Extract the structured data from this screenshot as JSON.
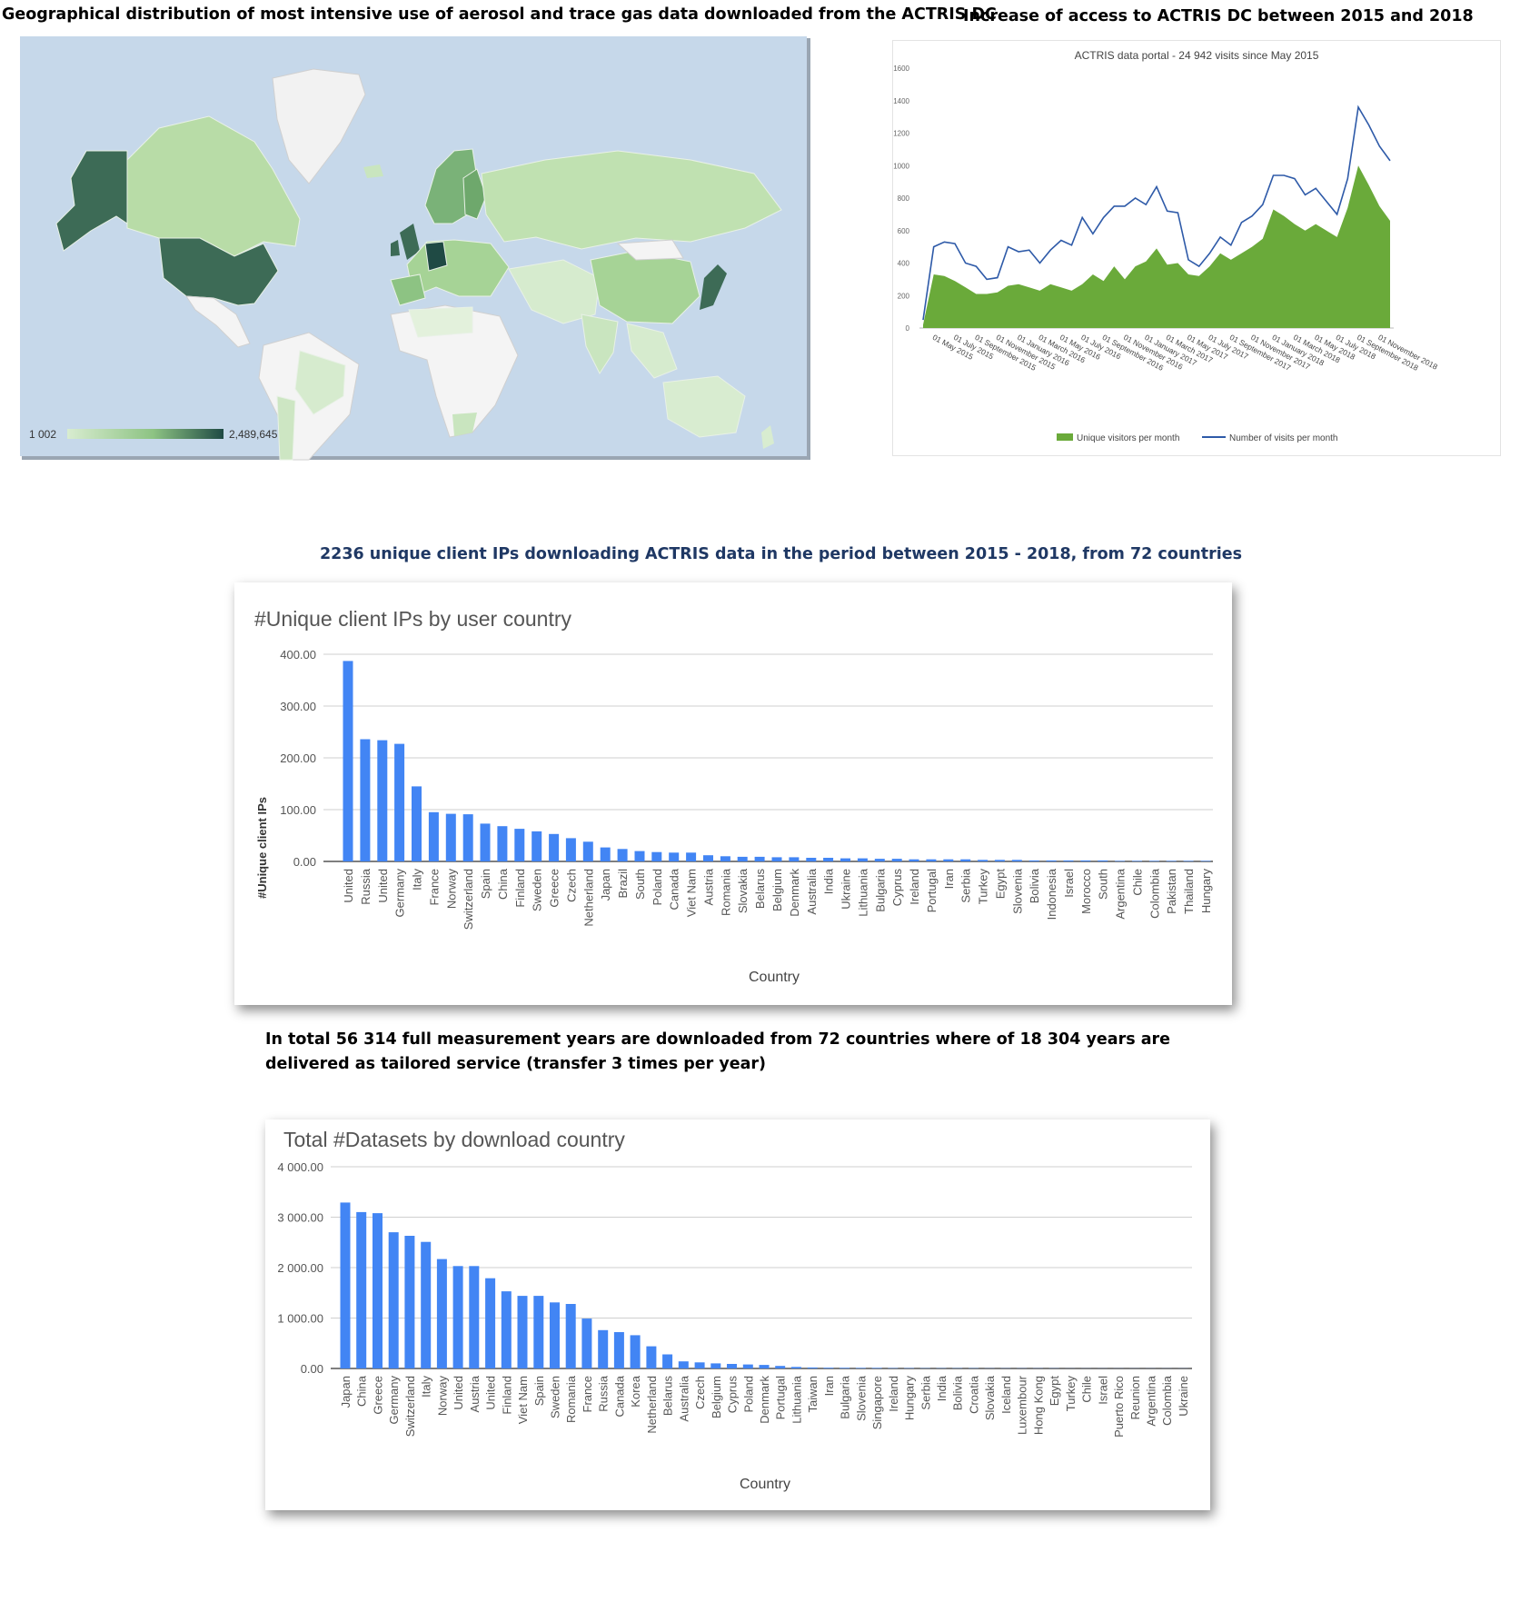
{
  "headings": {
    "map": "Geographical distribution of most intensive use of aerosol and trace gas data downloaded from the ACTRIS DC",
    "visits": "Increase of access to ACTRIS DC between 2015 and 2018",
    "ips": "2236 unique client IPs downloading ACTRIS data in the period between 2015 - 2018, from 72 countries",
    "datasets": "In total 56 314 full measurement years are downloaded from 72 countries where of 18 304 years are delivered as tailored service (transfer 3 times per year)"
  },
  "map": {
    "legend_min": "1 002",
    "legend_max": "2,489,645",
    "ocean_color": "#c6d8ea",
    "scale_low": "#d8ecd0",
    "scale_high": "#1f4a44"
  },
  "chart_data": [
    {
      "type": "area",
      "title": "ACTRIS data portal - 24 942 visits since May 2015",
      "ylim": [
        0,
        1600
      ],
      "yticks": [
        "0",
        "200",
        "400",
        "600",
        "800",
        "1000",
        "1200",
        "1400",
        "1600"
      ],
      "xtick_labels": [
        "01 May 2015",
        "01 July 2015",
        "01 September 2015",
        "01 November 2015",
        "01 January 2016",
        "01 March 2016",
        "01 May 2016",
        "01 July 2016",
        "01 September 2016",
        "01 November 2016",
        "01 January 2017",
        "01 March 2017",
        "01 May 2017",
        "01 July 2017",
        "01 September 2017",
        "01 November 2017",
        "01 January 2018",
        "01 March 2018",
        "01 May 2018",
        "01 July 2018",
        "01 September 2018",
        "01 November 2018"
      ],
      "x": [
        "2015-04",
        "2015-05",
        "2015-06",
        "2015-07",
        "2015-08",
        "2015-09",
        "2015-10",
        "2015-11",
        "2015-12",
        "2016-01",
        "2016-02",
        "2016-03",
        "2016-04",
        "2016-05",
        "2016-06",
        "2016-07",
        "2016-08",
        "2016-09",
        "2016-10",
        "2016-11",
        "2016-12",
        "2017-01",
        "2017-02",
        "2017-03",
        "2017-04",
        "2017-05",
        "2017-06",
        "2017-07",
        "2017-08",
        "2017-09",
        "2017-10",
        "2017-11",
        "2017-12",
        "2018-01",
        "2018-02",
        "2018-03",
        "2018-04",
        "2018-05",
        "2018-06",
        "2018-07",
        "2018-08",
        "2018-09",
        "2018-10",
        "2018-11",
        "2018-12"
      ],
      "series": [
        {
          "name": "Unique visitors per month",
          "color": "#6aaa3a",
          "kind": "area",
          "values": [
            20,
            330,
            320,
            290,
            250,
            210,
            210,
            220,
            260,
            270,
            250,
            230,
            270,
            250,
            230,
            270,
            330,
            290,
            380,
            300,
            380,
            410,
            490,
            390,
            400,
            330,
            320,
            380,
            460,
            420,
            460,
            500,
            550,
            730,
            690,
            640,
            600,
            640,
            600,
            560,
            740,
            1000,
            880,
            750,
            660
          ]
        },
        {
          "name": "Number of visits per month",
          "color": "#2e5aa8",
          "kind": "line",
          "values": [
            50,
            500,
            530,
            520,
            400,
            380,
            300,
            310,
            500,
            470,
            480,
            400,
            480,
            540,
            510,
            680,
            580,
            680,
            750,
            750,
            800,
            760,
            870,
            720,
            710,
            420,
            380,
            460,
            560,
            510,
            650,
            690,
            760,
            940,
            940,
            920,
            820,
            860,
            780,
            700,
            920,
            1360,
            1250,
            1120,
            1030
          ]
        }
      ]
    },
    {
      "type": "bar",
      "title": "#Unique client IPs by user country",
      "xlabel": "Country",
      "ylabel": "#Unique client IPs",
      "ylim": [
        0,
        400
      ],
      "yticks": [
        "0.00",
        "100.00",
        "200.00",
        "300.00",
        "400.00"
      ],
      "color": "#4285f4",
      "categories": [
        "United",
        "Russia",
        "United",
        "Germany",
        "Italy",
        "France",
        "Norway",
        "Switzerland",
        "Spain",
        "China",
        "Finland",
        "Sweden",
        "Greece",
        "Czech",
        "Netherland",
        "Japan",
        "Brazil",
        "South",
        "Poland",
        "Canada",
        "Viet Nam",
        "Austria",
        "Romania",
        "Slovakia",
        "Belarus",
        "Belgium",
        "Denmark",
        "Australia",
        "India",
        "Ukraine",
        "Lithuania",
        "Bulgaria",
        "Cyprus",
        "Ireland",
        "Portugal",
        "Iran",
        "Serbia",
        "Turkey",
        "Egypt",
        "Slovenia",
        "Bolivia",
        "Indonesia",
        "Israel",
        "Morocco",
        "South",
        "Argentina",
        "Chile",
        "Colombia",
        "Pakistan",
        "Thailand",
        "Hungary"
      ],
      "values": [
        387,
        236,
        234,
        227,
        145,
        95,
        92,
        91,
        73,
        68,
        63,
        58,
        53,
        45,
        38,
        27,
        24,
        20,
        18,
        17,
        17,
        12,
        10,
        9,
        9,
        8,
        8,
        7,
        7,
        6,
        6,
        5,
        5,
        4,
        4,
        4,
        4,
        3,
        3,
        3,
        2,
        2,
        2,
        2,
        2,
        1,
        1,
        1,
        1,
        1,
        1
      ]
    },
    {
      "type": "bar",
      "title": "Total #Datasets by download country",
      "xlabel": "Country",
      "ylim": [
        0,
        4000
      ],
      "yticks": [
        "0.00",
        "1 000.00",
        "2 000.00",
        "3 000.00",
        "4 000.00"
      ],
      "color": "#4285f4",
      "categories": [
        "Japan",
        "China",
        "Greece",
        "Germany",
        "Switzerland",
        "Italy",
        "Norway",
        "United",
        "Austria",
        "United",
        "Finland",
        "Viet Nam",
        "Spain",
        "Sweden",
        "Romania",
        "France",
        "Russia",
        "Canada",
        "Korea",
        "Netherland",
        "Belarus",
        "Australia",
        "Czech",
        "Belgium",
        "Cyprus",
        "Poland",
        "Denmark",
        "Portugal",
        "Lithuania",
        "Taiwan",
        "Iran",
        "Bulgaria",
        "Slovenia",
        "Singapore",
        "Ireland",
        "Hungary",
        "Serbia",
        "India",
        "Bolivia",
        "Croatia",
        "Slovakia",
        "Iceland",
        "Luxembour",
        "Hong Kong",
        "Egypt",
        "Turkey",
        "Chile",
        "Israel",
        "Puerto Rico",
        "Reunion",
        "Argentina",
        "Colombia",
        "Ukraine"
      ],
      "values": [
        3290,
        3100,
        3080,
        2700,
        2630,
        2510,
        2170,
        2030,
        2030,
        1790,
        1530,
        1440,
        1440,
        1310,
        1280,
        990,
        760,
        720,
        660,
        440,
        280,
        140,
        120,
        100,
        90,
        80,
        70,
        50,
        30,
        20,
        15,
        12,
        10,
        10,
        8,
        8,
        6,
        6,
        5,
        5,
        4,
        4,
        3,
        3,
        3,
        2,
        2,
        2,
        2,
        1,
        1,
        1,
        1
      ]
    }
  ]
}
